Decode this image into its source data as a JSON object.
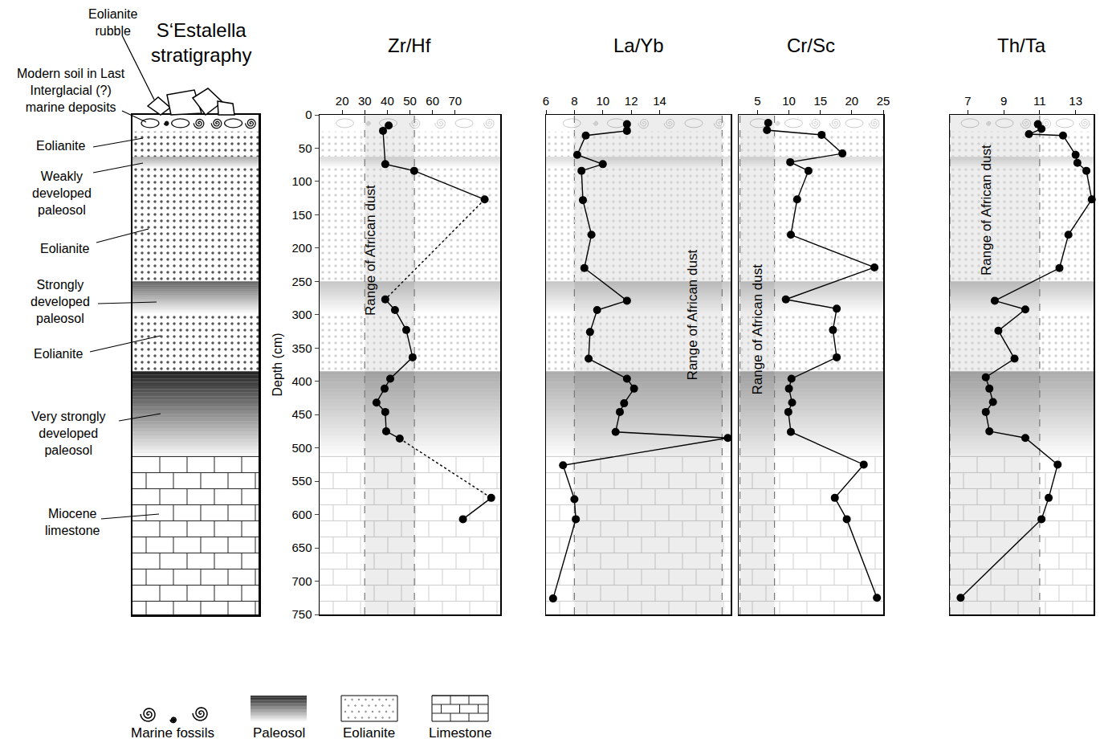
{
  "chart_data": [
    {
      "type": "line",
      "title": "Zr/Hf",
      "ylabel": "Depth (cm)",
      "xlim": [
        10,
        90
      ],
      "xticks": [
        20,
        30,
        40,
        50,
        60,
        70
      ],
      "ylim": [
        750,
        0
      ],
      "yticks": [
        0,
        50,
        100,
        150,
        200,
        250,
        300,
        350,
        400,
        450,
        500,
        550,
        600,
        650,
        700,
        750
      ],
      "dust_range": [
        30,
        52
      ],
      "dust_label": "Range of African dust",
      "series": [
        {
          "color": "#000000",
          "marker": "circle",
          "line_style": "solid",
          "depth": [
            16,
            24,
            74,
            84,
            127,
            null,
            277,
            293,
            323,
            364,
            396,
            411,
            432,
            446,
            475,
            486,
            null,
            575,
            607
          ],
          "values": [
            40.6,
            38.1,
            39.1,
            51.9,
            83.1,
            null,
            39.1,
            43.4,
            48.4,
            51.2,
            41.3,
            38.8,
            35.2,
            39.1,
            39.5,
            45.5,
            null,
            86,
            73.5
          ]
        },
        {
          "color": "#000000",
          "marker": "none",
          "line_style": "dotted",
          "depth": [
            127,
            277,
            null,
            486,
            575
          ],
          "values": [
            83.1,
            39.1,
            null,
            45.5,
            86
          ]
        }
      ]
    },
    {
      "type": "line",
      "title": "La/Yb",
      "tick_labels": "x",
      "xlim": [
        6,
        19
      ],
      "xticks": [
        6,
        8,
        10,
        12,
        14
      ],
      "ylim": [
        750,
        0
      ],
      "dust_range": [
        8,
        18.4
      ],
      "dust_label": "Range of African dust",
      "series": [
        {
          "color": "#000000",
          "marker": "circle",
          "line_style": "solid",
          "depth": [
            14,
            24,
            31,
            60,
            74,
            84,
            128,
            180,
            230,
            279,
            293,
            326,
            366,
            396,
            411,
            433,
            446,
            476,
            485,
            526,
            577,
            607,
            726
          ],
          "values": [
            11.7,
            11.7,
            8.8,
            8.2,
            10.0,
            8.5,
            8.6,
            9.2,
            8.7,
            11.7,
            9.6,
            9.1,
            9.0,
            11.7,
            12.2,
            11.5,
            11.2,
            10.9,
            18.8,
            7.2,
            8.0,
            8.1,
            6.5
          ]
        }
      ]
    },
    {
      "type": "line",
      "title": "Cr/Sc",
      "tick_labels": "x",
      "xlim": [
        2,
        25
      ],
      "xticks": [
        5,
        10,
        15,
        20,
        25
      ],
      "ylim": [
        750,
        0
      ],
      "dust_range": [
        2.2,
        7.7
      ],
      "dust_label": "Range of African dust",
      "series": [
        {
          "color": "#000000",
          "marker": "circle",
          "line_style": "solid",
          "depth": [
            12,
            23,
            30,
            58,
            71,
            84,
            127,
            180,
            229,
            277,
            291,
            323,
            364,
            396,
            411,
            432,
            446,
            476,
            525,
            575,
            607,
            725
          ],
          "values": [
            6.7,
            6.5,
            15.2,
            18.5,
            10.2,
            13.1,
            11.3,
            10.3,
            23.6,
            9.5,
            17.6,
            17.0,
            17.6,
            10.4,
            10.0,
            10.5,
            9.9,
            10.3,
            21.9,
            17.3,
            19.2,
            24.0
          ]
        }
      ]
    },
    {
      "type": "line",
      "title": "Th/Ta",
      "tick_labels": "x",
      "xlim": [
        6,
        14
      ],
      "xticks": [
        7,
        9,
        11,
        13
      ],
      "ylim": [
        750,
        0
      ],
      "dust_range": [
        6,
        11
      ],
      "dust_label": "Range of African dust",
      "series": [
        {
          "color": "#000000",
          "marker": "circle",
          "line_style": "solid",
          "depth": [
            14,
            21,
            29,
            31,
            60,
            72,
            84,
            127,
            180,
            230,
            279,
            292,
            324,
            366,
            394,
            411,
            431,
            446,
            475,
            485,
            525,
            575,
            607,
            725
          ],
          "values": [
            10.9,
            11.1,
            10.4,
            12.3,
            13.0,
            13.1,
            13.6,
            13.9,
            12.6,
            12.1,
            8.5,
            10.2,
            8.7,
            9.6,
            8.0,
            8.2,
            8.4,
            8.0,
            8.2,
            10.2,
            12.0,
            11.5,
            11.1,
            6.6
          ]
        }
      ]
    }
  ],
  "stratigraphy": {
    "title": "S‘Estalella stratigraphy",
    "top_label": "Eolianite rubble",
    "layers": [
      {
        "label": "Modern soil in Last Interglacial (?) marine deposits",
        "kind": "marine",
        "top": 0,
        "bottom": 25
      },
      {
        "label": "Eolianite",
        "kind": "eolianite",
        "top": 25,
        "bottom": 63
      },
      {
        "label": "Weakly developed paleosol",
        "kind": "paleosol",
        "top": 63,
        "bottom": 80
      },
      {
        "label": "Eolianite",
        "kind": "eolianite",
        "top": 80,
        "bottom": 250
      },
      {
        "label": "Strongly developed paleosol",
        "kind": "paleosol",
        "top": 250,
        "bottom": 298
      },
      {
        "label": "Eolianite",
        "kind": "eolianite",
        "top": 298,
        "bottom": 385
      },
      {
        "label": "Very strongly developed paleosol",
        "kind": "paleosol",
        "top": 385,
        "bottom": 513
      },
      {
        "label": "Miocene limestone",
        "kind": "limestone",
        "top": 513,
        "bottom": 750
      }
    ]
  },
  "key": [
    {
      "label": "Marine fossils",
      "kind": "marine"
    },
    {
      "label": "Paleosol",
      "kind": "paleosol"
    },
    {
      "label": "Eolianite",
      "kind": "eolianite"
    },
    {
      "label": "Limestone",
      "kind": "limestone"
    }
  ]
}
